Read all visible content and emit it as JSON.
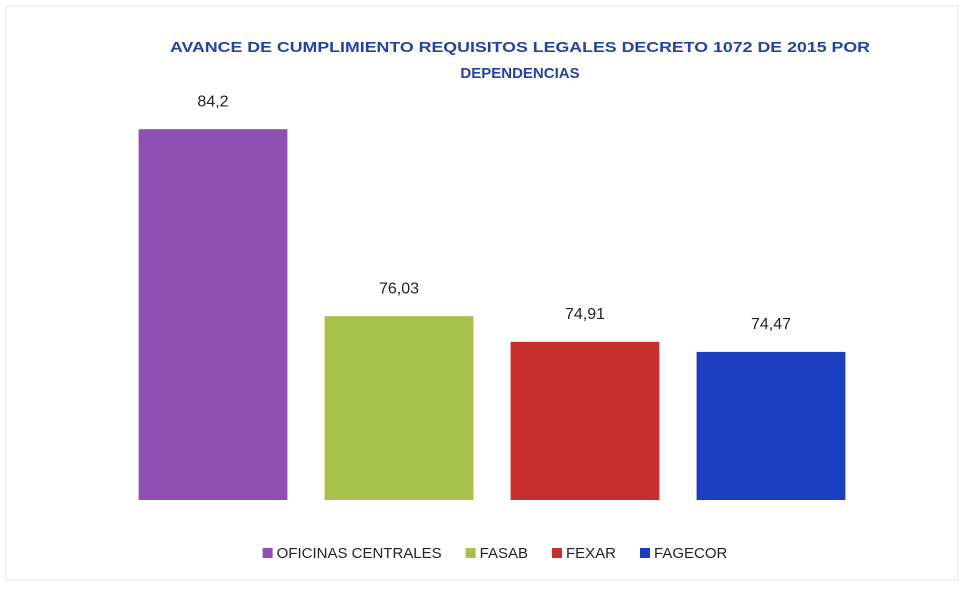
{
  "chart_data": {
    "type": "bar",
    "title": [
      "AVANCE DE CUMPLIMIENTO REQUISITOS LEGALES DECRETO 1072 DE 2015 POR",
      "DEPENDENCIAS"
    ],
    "categories": [
      null
    ],
    "series": [
      {
        "name": "OFICINAS CENTRALES",
        "color": "#8f4fb3",
        "values": [
          84.2
        ],
        "value_labels": [
          "84,2"
        ]
      },
      {
        "name": "FASAB",
        "color": "#a6c04a",
        "values": [
          76.03
        ],
        "value_labels": [
          "76,03"
        ]
      },
      {
        "name": "FEXAR",
        "color": "#c82f2f",
        "values": [
          74.91
        ],
        "value_labels": [
          "74,91"
        ]
      },
      {
        "name": "FAGECOR",
        "color": "#1c3fc2",
        "values": [
          74.47
        ],
        "value_labels": [
          "74,47"
        ]
      }
    ],
    "ylim": [
      68,
      86
    ],
    "legend": "bottom"
  }
}
